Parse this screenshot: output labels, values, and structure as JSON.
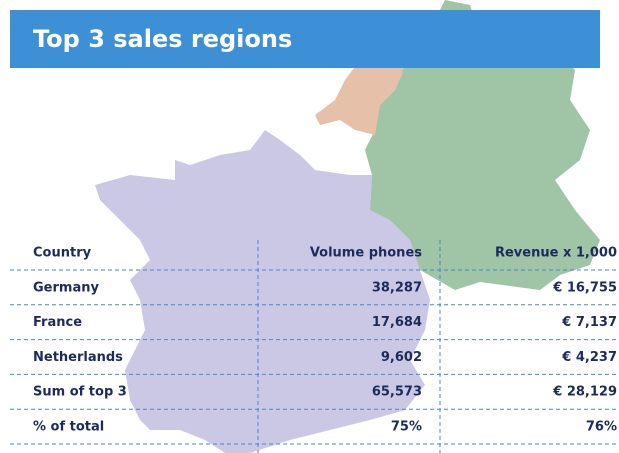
{
  "header": {
    "title": "Top 3 sales regions"
  },
  "table": {
    "columns": [
      "Country",
      "Volume phones",
      "Revenue x 1,000"
    ],
    "rows": [
      [
        "Germany",
        "38,287",
        "€ 16,755"
      ],
      [
        "France",
        "17,684",
        "€ 7,137"
      ],
      [
        "Netherlands",
        "9,602",
        "€ 4,237"
      ],
      [
        "Sum of top 3",
        "65,573",
        "€ 28,129"
      ],
      [
        "% of total",
        "75%",
        "76%"
      ]
    ]
  }
}
